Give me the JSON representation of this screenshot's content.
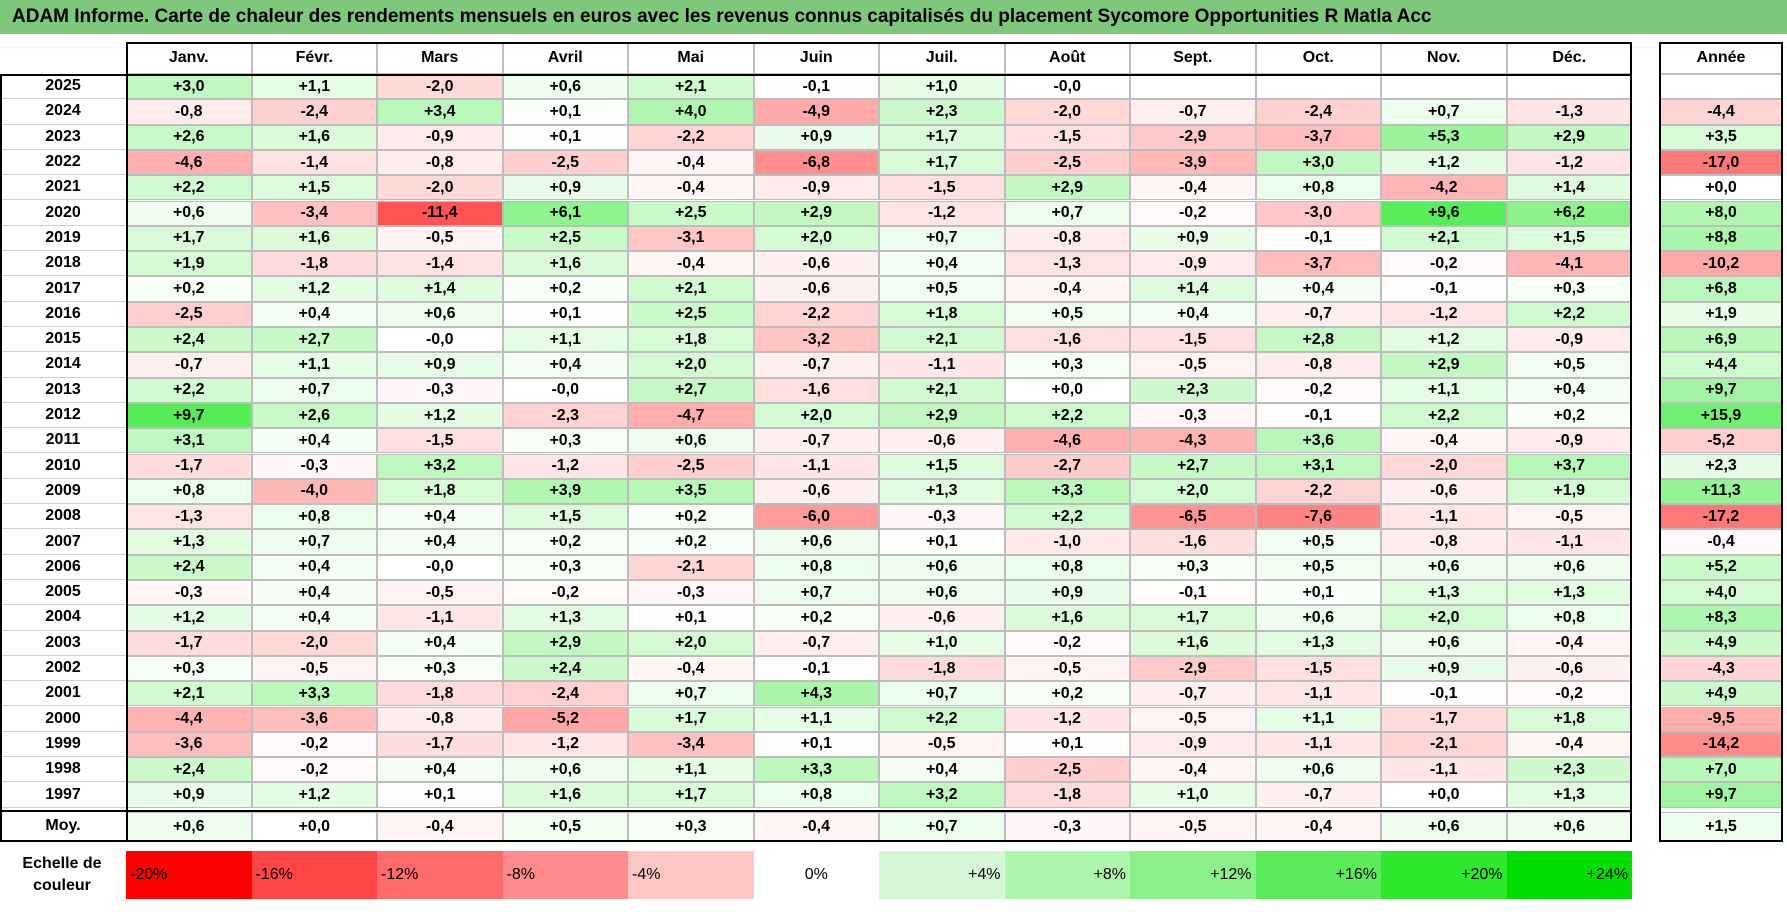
{
  "title": "ADAM Informe. Carte de chaleur des rendements mensuels en euros avec les revenus connus capitalisés du placement Sycomore Opportunities R Matla Acc",
  "year_column_header": "Année",
  "average_row_label": "Moy.",
  "scale_label": "Echelle de couleur",
  "scale_steps": [
    {
      "value": -20,
      "label": "-20%",
      "color": "#ff0000"
    },
    {
      "value": -16,
      "label": "-16%",
      "color": "#ff4545"
    },
    {
      "value": -12,
      "label": "-12%",
      "color": "#ff6a6a"
    },
    {
      "value": -8,
      "label": "-8%",
      "color": "#ff8c8c"
    },
    {
      "value": -4,
      "label": "-4%",
      "color": "#ffc6c6"
    },
    {
      "value": 0,
      "label": "0%",
      "color": "#ffffff"
    },
    {
      "value": 4,
      "label": "+4%",
      "color": "#d6f7d6"
    },
    {
      "value": 8,
      "label": "+8%",
      "color": "#aef5ae"
    },
    {
      "value": 12,
      "label": "+12%",
      "color": "#8af08a"
    },
    {
      "value": 16,
      "label": "+16%",
      "color": "#5aec5a"
    },
    {
      "value": 20,
      "label": "+20%",
      "color": "#2ee82e"
    },
    {
      "value": 24,
      "label": "+24%",
      "color": "#00e000"
    }
  ],
  "chart_data": {
    "type": "heatmap",
    "title": "ADAM Informe. Carte de chaleur des rendements mensuels en euros avec les revenus connus capitalisés du placement Sycomore Opportunities R Matla Acc",
    "columns": [
      "Janv.",
      "Févr.",
      "Mars",
      "Avril",
      "Mai",
      "Juin",
      "Juil.",
      "Août",
      "Sept.",
      "Oct.",
      "Nov.",
      "Déc."
    ],
    "rows": [
      {
        "year": "2025",
        "values": [
          "+3,0",
          "+1,1",
          "-2,0",
          "+0,6",
          "+2,1",
          "-0,1",
          "+1,0",
          "-0,0",
          "",
          "",
          "",
          ""
        ],
        "annual": ""
      },
      {
        "year": "2024",
        "values": [
          "-0,8",
          "-2,4",
          "+3,4",
          "+0,1",
          "+4,0",
          "-4,9",
          "+2,3",
          "-2,0",
          "-0,7",
          "-2,4",
          "+0,7",
          "-1,3"
        ],
        "annual": "-4,4"
      },
      {
        "year": "2023",
        "values": [
          "+2,6",
          "+1,6",
          "-0,9",
          "+0,1",
          "-2,2",
          "+0,9",
          "+1,7",
          "-1,5",
          "-2,9",
          "-3,7",
          "+5,3",
          "+2,9"
        ],
        "annual": "+3,5"
      },
      {
        "year": "2022",
        "values": [
          "-4,6",
          "-1,4",
          "-0,8",
          "-2,5",
          "-0,4",
          "-6,8",
          "+1,7",
          "-2,5",
          "-3,9",
          "+3,0",
          "+1,2",
          "-1,2"
        ],
        "annual": "-17,0"
      },
      {
        "year": "2021",
        "values": [
          "+2,2",
          "+1,5",
          "-2,0",
          "+0,9",
          "-0,4",
          "-0,9",
          "-1,5",
          "+2,9",
          "-0,4",
          "+0,8",
          "-4,2",
          "+1,4"
        ],
        "annual": "+0,0"
      },
      {
        "year": "2020",
        "values": [
          "+0,6",
          "-3,4",
          "-11,4",
          "+6,1",
          "+2,5",
          "+2,9",
          "-1,2",
          "+0,7",
          "-0,2",
          "-3,0",
          "+9,6",
          "+6,2"
        ],
        "annual": "+8,0"
      },
      {
        "year": "2019",
        "values": [
          "+1,7",
          "+1,6",
          "-0,5",
          "+2,5",
          "-3,1",
          "+2,0",
          "+0,7",
          "-0,8",
          "+0,9",
          "-0,1",
          "+2,1",
          "+1,5"
        ],
        "annual": "+8,8"
      },
      {
        "year": "2018",
        "values": [
          "+1,9",
          "-1,8",
          "-1,4",
          "+1,6",
          "-0,4",
          "-0,6",
          "+0,4",
          "-1,3",
          "-0,9",
          "-3,7",
          "-0,2",
          "-4,1"
        ],
        "annual": "-10,2"
      },
      {
        "year": "2017",
        "values": [
          "+0,2",
          "+1,2",
          "+1,4",
          "+0,2",
          "+2,1",
          "-0,6",
          "+0,5",
          "-0,4",
          "+1,4",
          "+0,4",
          "-0,1",
          "+0,3"
        ],
        "annual": "+6,8"
      },
      {
        "year": "2016",
        "values": [
          "-2,5",
          "+0,4",
          "+0,6",
          "+0,1",
          "+2,5",
          "-2,2",
          "+1,8",
          "+0,5",
          "+0,4",
          "-0,7",
          "-1,2",
          "+2,2"
        ],
        "annual": "+1,9"
      },
      {
        "year": "2015",
        "values": [
          "+2,4",
          "+2,7",
          "-0,0",
          "+1,1",
          "+1,8",
          "-3,2",
          "+2,1",
          "-1,6",
          "-1,5",
          "+2,8",
          "+1,2",
          "-0,9"
        ],
        "annual": "+6,9"
      },
      {
        "year": "2014",
        "values": [
          "-0,7",
          "+1,1",
          "+0,9",
          "+0,4",
          "+2,0",
          "-0,7",
          "-1,1",
          "+0,3",
          "-0,5",
          "-0,8",
          "+2,9",
          "+0,5"
        ],
        "annual": "+4,4"
      },
      {
        "year": "2013",
        "values": [
          "+2,2",
          "+0,7",
          "-0,3",
          "-0,0",
          "+2,7",
          "-1,6",
          "+2,1",
          "+0,0",
          "+2,3",
          "-0,2",
          "+1,1",
          "+0,4"
        ],
        "annual": "+9,7"
      },
      {
        "year": "2012",
        "values": [
          "+9,7",
          "+2,6",
          "+1,2",
          "-2,3",
          "-4,7",
          "+2,0",
          "+2,9",
          "+2,2",
          "-0,3",
          "-0,1",
          "+2,2",
          "+0,2"
        ],
        "annual": "+15,9"
      },
      {
        "year": "2011",
        "values": [
          "+3,1",
          "+0,4",
          "-1,5",
          "+0,3",
          "+0,6",
          "-0,7",
          "-0,6",
          "-4,6",
          "-4,3",
          "+3,6",
          "-0,4",
          "-0,9"
        ],
        "annual": "-5,2"
      },
      {
        "year": "2010",
        "values": [
          "-1,7",
          "-0,3",
          "+3,2",
          "-1,2",
          "-2,5",
          "-1,1",
          "+1,5",
          "-2,7",
          "+2,7",
          "+3,1",
          "-2,0",
          "+3,7"
        ],
        "annual": "+2,3"
      },
      {
        "year": "2009",
        "values": [
          "+0,8",
          "-4,0",
          "+1,8",
          "+3,9",
          "+3,5",
          "-0,6",
          "+1,3",
          "+3,3",
          "+2,0",
          "-2,2",
          "-0,6",
          "+1,9"
        ],
        "annual": "+11,3"
      },
      {
        "year": "2008",
        "values": [
          "-1,3",
          "+0,8",
          "+0,4",
          "+1,5",
          "+0,2",
          "-6,0",
          "-0,3",
          "+2,2",
          "-6,5",
          "-7,6",
          "-1,1",
          "-0,5"
        ],
        "annual": "-17,2"
      },
      {
        "year": "2007",
        "values": [
          "+1,3",
          "+0,7",
          "+0,4",
          "+0,2",
          "+0,2",
          "+0,6",
          "+0,1",
          "-1,0",
          "-1,6",
          "+0,5",
          "-0,8",
          "-1,1"
        ],
        "annual": "-0,4"
      },
      {
        "year": "2006",
        "values": [
          "+2,4",
          "+0,4",
          "-0,0",
          "+0,3",
          "-2,1",
          "+0,8",
          "+0,6",
          "+0,8",
          "+0,3",
          "+0,5",
          "+0,6",
          "+0,6"
        ],
        "annual": "+5,2"
      },
      {
        "year": "2005",
        "values": [
          "-0,3",
          "+0,4",
          "-0,5",
          "-0,2",
          "-0,3",
          "+0,7",
          "+0,6",
          "+0,9",
          "-0,1",
          "+0,1",
          "+1,3",
          "+1,3"
        ],
        "annual": "+4,0"
      },
      {
        "year": "2004",
        "values": [
          "+1,2",
          "+0,4",
          "-1,1",
          "+1,3",
          "+0,1",
          "+0,2",
          "-0,6",
          "+1,6",
          "+1,7",
          "+0,6",
          "+2,0",
          "+0,8"
        ],
        "annual": "+8,3"
      },
      {
        "year": "2003",
        "values": [
          "-1,7",
          "-2,0",
          "+0,4",
          "+2,9",
          "+2,0",
          "-0,7",
          "+1,0",
          "-0,2",
          "+1,6",
          "+1,3",
          "+0,6",
          "-0,4"
        ],
        "annual": "+4,9"
      },
      {
        "year": "2002",
        "values": [
          "+0,3",
          "-0,5",
          "+0,3",
          "+2,4",
          "-0,4",
          "-0,1",
          "-1,8",
          "-0,5",
          "-2,9",
          "-1,5",
          "+0,9",
          "-0,6"
        ],
        "annual": "-4,3"
      },
      {
        "year": "2001",
        "values": [
          "+2,1",
          "+3,3",
          "-1,8",
          "-2,4",
          "+0,7",
          "+4,3",
          "+0,7",
          "+0,2",
          "-0,7",
          "-1,1",
          "-0,1",
          "-0,2"
        ],
        "annual": "+4,9"
      },
      {
        "year": "2000",
        "values": [
          "-4,4",
          "-3,6",
          "-0,8",
          "-5,2",
          "+1,7",
          "+1,1",
          "+2,2",
          "-1,2",
          "-0,5",
          "+1,1",
          "-1,7",
          "+1,8"
        ],
        "annual": "-9,5"
      },
      {
        "year": "1999",
        "values": [
          "-3,6",
          "-0,2",
          "-1,7",
          "-1,2",
          "-3,4",
          "+0,1",
          "-0,5",
          "+0,1",
          "-0,9",
          "-1,1",
          "-2,1",
          "-0,4"
        ],
        "annual": "-14,2"
      },
      {
        "year": "1998",
        "values": [
          "+2,4",
          "-0,2",
          "+0,4",
          "+0,6",
          "+1,1",
          "+3,3",
          "+0,4",
          "-2,5",
          "-0,4",
          "+0,6",
          "-1,1",
          "+2,3"
        ],
        "annual": "+7,0"
      },
      {
        "year": "1997",
        "values": [
          "+0,9",
          "+1,2",
          "+0,1",
          "+1,6",
          "+1,7",
          "+0,8",
          "+3,2",
          "-1,8",
          "+1,0",
          "-0,7",
          "+0,0",
          "+1,3"
        ],
        "annual": "+9,7"
      }
    ],
    "average": {
      "values": [
        "+0,6",
        "+0,0",
        "-0,4",
        "+0,5",
        "+0,3",
        "-0,4",
        "+0,7",
        "-0,3",
        "-0,5",
        "-0,4",
        "+0,6",
        "+0,6"
      ],
      "annual": "+1,5"
    },
    "color_scale": {
      "min": -20,
      "max": 24,
      "negative_color": "#ff0000",
      "positive_color": "#00e000",
      "neutral_color": "#ffffff"
    }
  }
}
